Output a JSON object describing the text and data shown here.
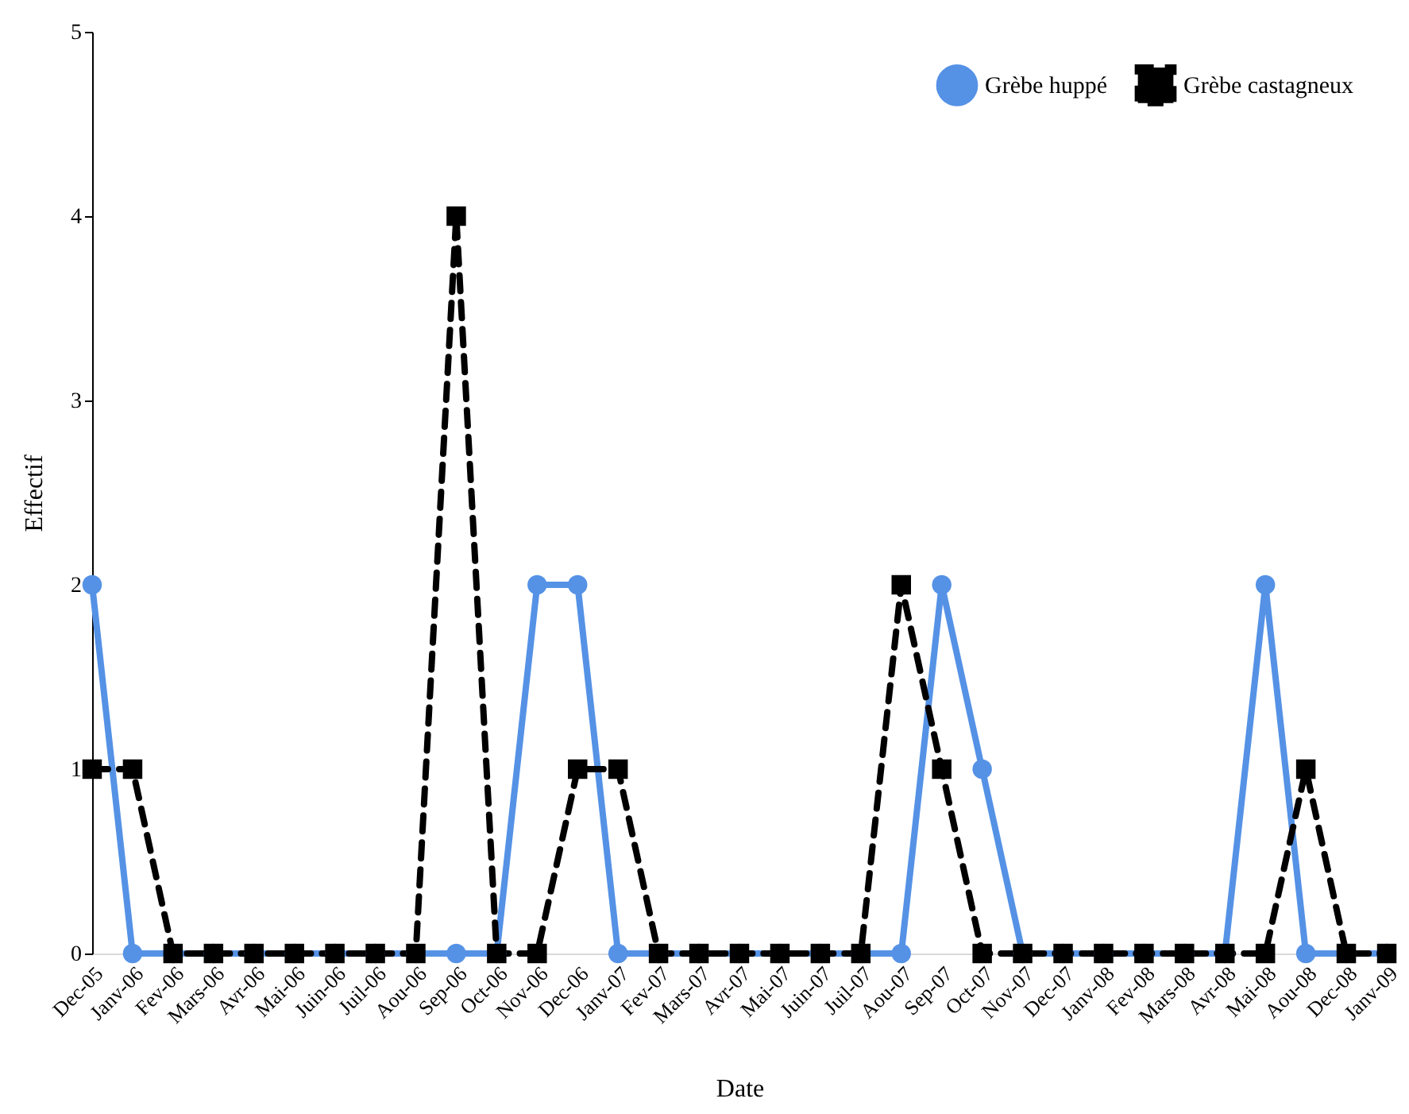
{
  "chart_data": {
    "type": "line",
    "xlabel": "Date",
    "ylabel": "Effectif",
    "categories": [
      "Dec-05",
      "Janv-06",
      "Fev-06",
      "Mars-06",
      "Avr-06",
      "Mai-06",
      "Juin-06",
      "Juil-06",
      "Aou-06",
      "Sep-06",
      "Oct-06",
      "Nov-06",
      "Dec-06",
      "Janv-07",
      "Fev-07",
      "Mars-07",
      "Avr-07",
      "Mai-07",
      "Juin-07",
      "Juil-07",
      "Aou-07",
      "Sep-07",
      "Oct-07",
      "Nov-07",
      "Dec-07",
      "Janv-08",
      "Fev-08",
      "Mars-08",
      "Avr-08",
      "Mai-08",
      "Aou-08",
      "Dec-08",
      "Janv-09"
    ],
    "series": [
      {
        "name": "Grèbe huppé",
        "color": "#5592e6",
        "marker": "circle",
        "line_style": "solid",
        "values": [
          2,
          0,
          0,
          0,
          0,
          0,
          0,
          0,
          0,
          0,
          0,
          2,
          2,
          0,
          0,
          0,
          0,
          0,
          0,
          0,
          0,
          2,
          1,
          0,
          0,
          0,
          0,
          0,
          0,
          2,
          0,
          0,
          0
        ]
      },
      {
        "name": "Grèbe castagneux",
        "color": "#000000",
        "marker": "square",
        "line_style": "dashed",
        "values": [
          1,
          1,
          0,
          0,
          0,
          0,
          0,
          0,
          0,
          4,
          0,
          0,
          1,
          1,
          0,
          0,
          0,
          0,
          0,
          0,
          2,
          1,
          0,
          0,
          0,
          0,
          0,
          0,
          0,
          0,
          1,
          0,
          0
        ]
      }
    ],
    "ylim": [
      0,
      5
    ],
    "yticks": [
      0,
      1,
      2,
      3,
      4,
      5
    ],
    "grid": false,
    "legend": "top right"
  }
}
